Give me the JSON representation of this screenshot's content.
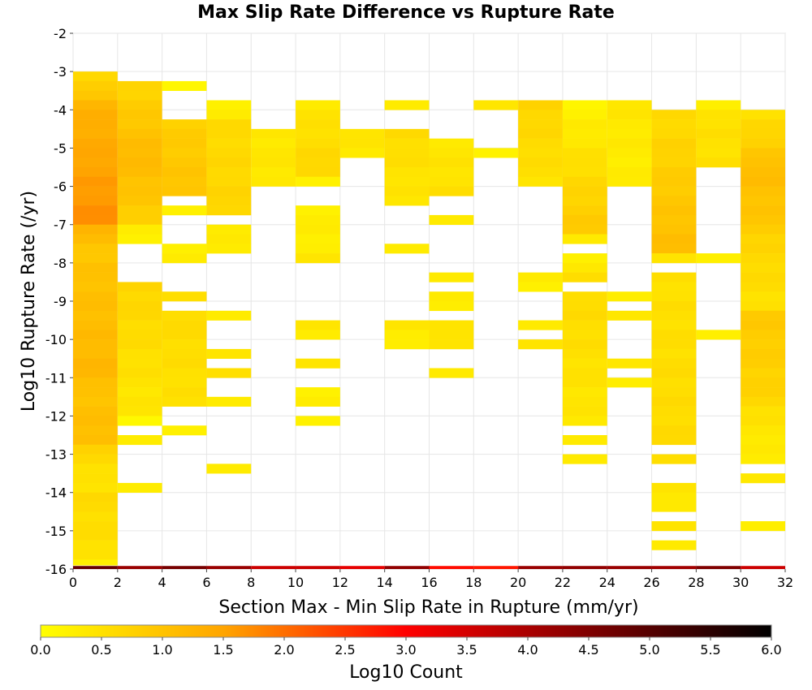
{
  "chart_data": {
    "type": "heatmap",
    "title": "Max Slip Rate Difference vs Rupture Rate",
    "xlabel": "Section Max - Min Slip Rate in Rupture (mm/yr)",
    "ylabel": "Log10 Rupture Rate (/yr)",
    "xlim": [
      0,
      32
    ],
    "ylim": [
      -16,
      -2
    ],
    "x_ticks": [
      "0",
      "2",
      "4",
      "6",
      "8",
      "10",
      "12",
      "14",
      "16",
      "18",
      "20",
      "22",
      "24",
      "26",
      "28",
      "30",
      "32"
    ],
    "y_ticks": [
      "-2",
      "-3",
      "-4",
      "-5",
      "-6",
      "-7",
      "-8",
      "-9",
      "-10",
      "-11",
      "-12",
      "-13",
      "-14",
      "-15",
      "-16"
    ],
    "x_bin_width": 2,
    "y_bin_height": 0.25,
    "grid": true,
    "colorbar": {
      "label": "Log10 Count",
      "range": [
        0,
        6
      ],
      "ticks": [
        "0.0",
        "0.5",
        "1.0",
        "1.5",
        "2.0",
        "2.5",
        "3.0",
        "3.5",
        "4.0",
        "4.5",
        "5.0",
        "5.5",
        "6.0"
      ],
      "colors": [
        "#ffff00",
        "#ffa500",
        "#ff0000",
        "#000000"
      ]
    },
    "bottom_row_values": [
      4.8,
      4.2,
      4.6,
      4.2,
      3.6,
      3.6,
      3.3,
      4.3,
      2.9,
      2.8,
      4.2,
      4.3,
      4.2,
      4.1,
      4.5,
      3.6
    ],
    "columns": [
      {
        "x": 1,
        "segments": [
          {
            "y0": -3.0,
            "y1": -4.0,
            "v0": 0.6,
            "v1": 1.2
          },
          {
            "y0": -4.0,
            "y1": -7.0,
            "v0": 1.3,
            "v1": 1.7
          },
          {
            "y0": -7.0,
            "y1": -8.0,
            "v0": 1.2,
            "v1": 0.9
          },
          {
            "y0": -8.0,
            "y1": -11.0,
            "v0": 1.0,
            "v1": 1.2
          },
          {
            "y0": -11.0,
            "y1": -12.75,
            "v0": 1.0,
            "v1": 1.1
          },
          {
            "y0": -12.75,
            "y1": -14.0,
            "v0": 0.7,
            "v1": 0.4
          },
          {
            "y0": -14.0,
            "y1": -15.75,
            "v0": 0.6,
            "v1": 0.5
          },
          {
            "y0": -15.75,
            "y1": -15.9,
            "v0": 0.2,
            "v1": 0.2
          }
        ]
      },
      {
        "x": 3,
        "segments": [
          {
            "y0": -3.25,
            "y1": -5.5,
            "v0": 0.7,
            "v1": 1.2
          },
          {
            "y0": -5.5,
            "y1": -7.0,
            "v0": 1.1,
            "v1": 0.8
          },
          {
            "y0": -7.0,
            "y1": -7.5,
            "v0": 0.3,
            "v1": 0.3
          },
          {
            "y0": -8.5,
            "y1": -12.0,
            "v0": 0.7,
            "v1": 0.4
          },
          {
            "y0": -12.0,
            "y1": -12.25,
            "v0": 0.1,
            "v1": 0.1
          },
          {
            "y0": -12.5,
            "y1": -12.75,
            "v0": 0.3,
            "v1": 0.3
          },
          {
            "y0": -13.75,
            "y1": -14.0,
            "v0": 0.3,
            "v1": 0.3
          }
        ]
      },
      {
        "x": 5,
        "segments": [
          {
            "y0": -3.25,
            "y1": -3.5,
            "v0": 0.2,
            "v1": 0.2
          },
          {
            "y0": -4.25,
            "y1": -6.25,
            "v0": 0.8,
            "v1": 1.0
          },
          {
            "y0": -6.5,
            "y1": -6.75,
            "v0": 0.3,
            "v1": 0.3
          },
          {
            "y0": -7.5,
            "y1": -8.0,
            "v0": 0.3,
            "v1": 0.3
          },
          {
            "y0": -8.75,
            "y1": -9.0,
            "v0": 0.6,
            "v1": 0.6
          },
          {
            "y0": -9.25,
            "y1": -11.75,
            "v0": 0.6,
            "v1": 0.5
          },
          {
            "y0": -12.25,
            "y1": -12.5,
            "v0": 0.3,
            "v1": 0.3
          }
        ]
      },
      {
        "x": 7,
        "segments": [
          {
            "y0": -3.75,
            "y1": -4.25,
            "v0": 0.2,
            "v1": 0.3
          },
          {
            "y0": -4.25,
            "y1": -6.75,
            "v0": 0.6,
            "v1": 0.7
          },
          {
            "y0": -7.0,
            "y1": -7.75,
            "v0": 0.3,
            "v1": 0.4
          },
          {
            "y0": -9.25,
            "y1": -9.5,
            "v0": 0.3,
            "v1": 0.3
          },
          {
            "y0": -10.25,
            "y1": -10.5,
            "v0": 0.4,
            "v1": 0.4
          },
          {
            "y0": -10.75,
            "y1": -11.0,
            "v0": 0.5,
            "v1": 0.5
          },
          {
            "y0": -11.5,
            "y1": -11.75,
            "v0": 0.3,
            "v1": 0.3
          },
          {
            "y0": -13.25,
            "y1": -13.5,
            "v0": 0.3,
            "v1": 0.3
          }
        ]
      },
      {
        "x": 9,
        "segments": [
          {
            "y0": -4.5,
            "y1": -6.0,
            "v0": 0.4,
            "v1": 0.4
          }
        ]
      },
      {
        "x": 11,
        "segments": [
          {
            "y0": -3.75,
            "y1": -5.75,
            "v0": 0.4,
            "v1": 0.7
          },
          {
            "y0": -5.75,
            "y1": -6.0,
            "v0": 0.3,
            "v1": 0.3
          },
          {
            "y0": -6.5,
            "y1": -7.75,
            "v0": 0.3,
            "v1": 0.3
          },
          {
            "y0": -7.75,
            "y1": -8.0,
            "v0": 0.5,
            "v1": 0.5
          },
          {
            "y0": -9.5,
            "y1": -10.0,
            "v0": 0.5,
            "v1": 0.3
          },
          {
            "y0": -10.5,
            "y1": -10.75,
            "v0": 0.5,
            "v1": 0.5
          },
          {
            "y0": -11.25,
            "y1": -11.75,
            "v0": 0.3,
            "v1": 0.3
          },
          {
            "y0": -12.0,
            "y1": -12.25,
            "v0": 0.3,
            "v1": 0.3
          }
        ]
      },
      {
        "x": 13,
        "segments": [
          {
            "y0": -4.5,
            "y1": -5.25,
            "v0": 0.4,
            "v1": 0.4
          }
        ]
      },
      {
        "x": 15,
        "segments": [
          {
            "y0": -3.75,
            "y1": -4.0,
            "v0": 0.3,
            "v1": 0.3
          },
          {
            "y0": -4.5,
            "y1": -6.5,
            "v0": 0.6,
            "v1": 0.4
          },
          {
            "y0": -7.5,
            "y1": -7.75,
            "v0": 0.3,
            "v1": 0.3
          },
          {
            "y0": -9.5,
            "y1": -10.25,
            "v0": 0.4,
            "v1": 0.3
          }
        ]
      },
      {
        "x": 17,
        "segments": [
          {
            "y0": -4.75,
            "y1": -6.25,
            "v0": 0.4,
            "v1": 0.5
          },
          {
            "y0": -6.75,
            "y1": -7.0,
            "v0": 0.4,
            "v1": 0.4
          },
          {
            "y0": -8.25,
            "y1": -8.5,
            "v0": 0.4,
            "v1": 0.4
          },
          {
            "y0": -8.75,
            "y1": -9.25,
            "v0": 0.4,
            "v1": 0.3
          },
          {
            "y0": -9.5,
            "y1": -10.25,
            "v0": 0.5,
            "v1": 0.4
          },
          {
            "y0": -10.75,
            "y1": -11.0,
            "v0": 0.4,
            "v1": 0.4
          }
        ]
      },
      {
        "x": 19,
        "segments": [
          {
            "y0": -3.75,
            "y1": -4.0,
            "v0": 0.4,
            "v1": 0.4
          },
          {
            "y0": -5.0,
            "y1": -5.25,
            "v0": 0.2,
            "v1": 0.2
          }
        ]
      },
      {
        "x": 21,
        "segments": [
          {
            "y0": -3.75,
            "y1": -6.0,
            "v0": 0.7,
            "v1": 0.5
          },
          {
            "y0": -8.25,
            "y1": -8.75,
            "v0": 0.3,
            "v1": 0.3
          },
          {
            "y0": -9.5,
            "y1": -9.75,
            "v0": 0.3,
            "v1": 0.3
          },
          {
            "y0": -10.0,
            "y1": -10.25,
            "v0": 0.4,
            "v1": 0.4
          }
        ]
      },
      {
        "x": 23,
        "segments": [
          {
            "y0": -3.75,
            "y1": -7.25,
            "v0": 0.2,
            "v1": 0.9
          },
          {
            "y0": -7.25,
            "y1": -7.5,
            "v0": 0.4,
            "v1": 0.4
          },
          {
            "y0": -7.75,
            "y1": -8.5,
            "v0": 0.3,
            "v1": 0.5
          },
          {
            "y0": -8.75,
            "y1": -12.25,
            "v0": 0.6,
            "v1": 0.4
          },
          {
            "y0": -12.5,
            "y1": -12.75,
            "v0": 0.4,
            "v1": 0.4
          },
          {
            "y0": -13.0,
            "y1": -13.25,
            "v0": 0.4,
            "v1": 0.4
          }
        ]
      },
      {
        "x": 25,
        "segments": [
          {
            "y0": -3.75,
            "y1": -6.0,
            "v0": 0.4,
            "v1": 0.3
          },
          {
            "y0": -8.75,
            "y1": -9.0,
            "v0": 0.3,
            "v1": 0.3
          },
          {
            "y0": -9.25,
            "y1": -9.5,
            "v0": 0.4,
            "v1": 0.4
          },
          {
            "y0": -10.5,
            "y1": -10.75,
            "v0": 0.4,
            "v1": 0.4
          },
          {
            "y0": -11.0,
            "y1": -11.25,
            "v0": 0.3,
            "v1": 0.3
          }
        ]
      },
      {
        "x": 27,
        "segments": [
          {
            "y0": -4.0,
            "y1": -7.75,
            "v0": 0.6,
            "v1": 1.1
          },
          {
            "y0": -7.75,
            "y1": -8.0,
            "v0": 0.4,
            "v1": 0.4
          },
          {
            "y0": -8.25,
            "y1": -12.75,
            "v0": 0.5,
            "v1": 0.6
          },
          {
            "y0": -13.0,
            "y1": -13.25,
            "v0": 0.5,
            "v1": 0.5
          },
          {
            "y0": -13.75,
            "y1": -14.5,
            "v0": 0.4,
            "v1": 0.4
          },
          {
            "y0": -14.75,
            "y1": -15.0,
            "v0": 0.4,
            "v1": 0.4
          },
          {
            "y0": -15.25,
            "y1": -15.5,
            "v0": 0.3,
            "v1": 0.3
          }
        ]
      },
      {
        "x": 29,
        "segments": [
          {
            "y0": -3.75,
            "y1": -4.0,
            "v0": 0.3,
            "v1": 0.3
          },
          {
            "y0": -4.0,
            "y1": -5.5,
            "v0": 0.5,
            "v1": 0.5
          },
          {
            "y0": -7.75,
            "y1": -8.0,
            "v0": 0.3,
            "v1": 0.3
          },
          {
            "y0": -9.75,
            "y1": -10.0,
            "v0": 0.3,
            "v1": 0.3
          }
        ]
      },
      {
        "x": 31,
        "segments": [
          {
            "y0": -4.0,
            "y1": -5.5,
            "v0": 0.5,
            "v1": 1.0
          },
          {
            "y0": -5.5,
            "y1": -7.25,
            "v0": 1.1,
            "v1": 0.9
          },
          {
            "y0": -7.25,
            "y1": -9.25,
            "v0": 0.7,
            "v1": 0.5
          },
          {
            "y0": -9.25,
            "y1": -11.75,
            "v0": 0.9,
            "v1": 0.7
          },
          {
            "y0": -11.75,
            "y1": -13.25,
            "v0": 0.5,
            "v1": 0.3
          },
          {
            "y0": -13.5,
            "y1": -13.75,
            "v0": 0.4,
            "v1": 0.4
          },
          {
            "y0": -14.75,
            "y1": -15.0,
            "v0": 0.3,
            "v1": 0.3
          }
        ]
      }
    ]
  }
}
